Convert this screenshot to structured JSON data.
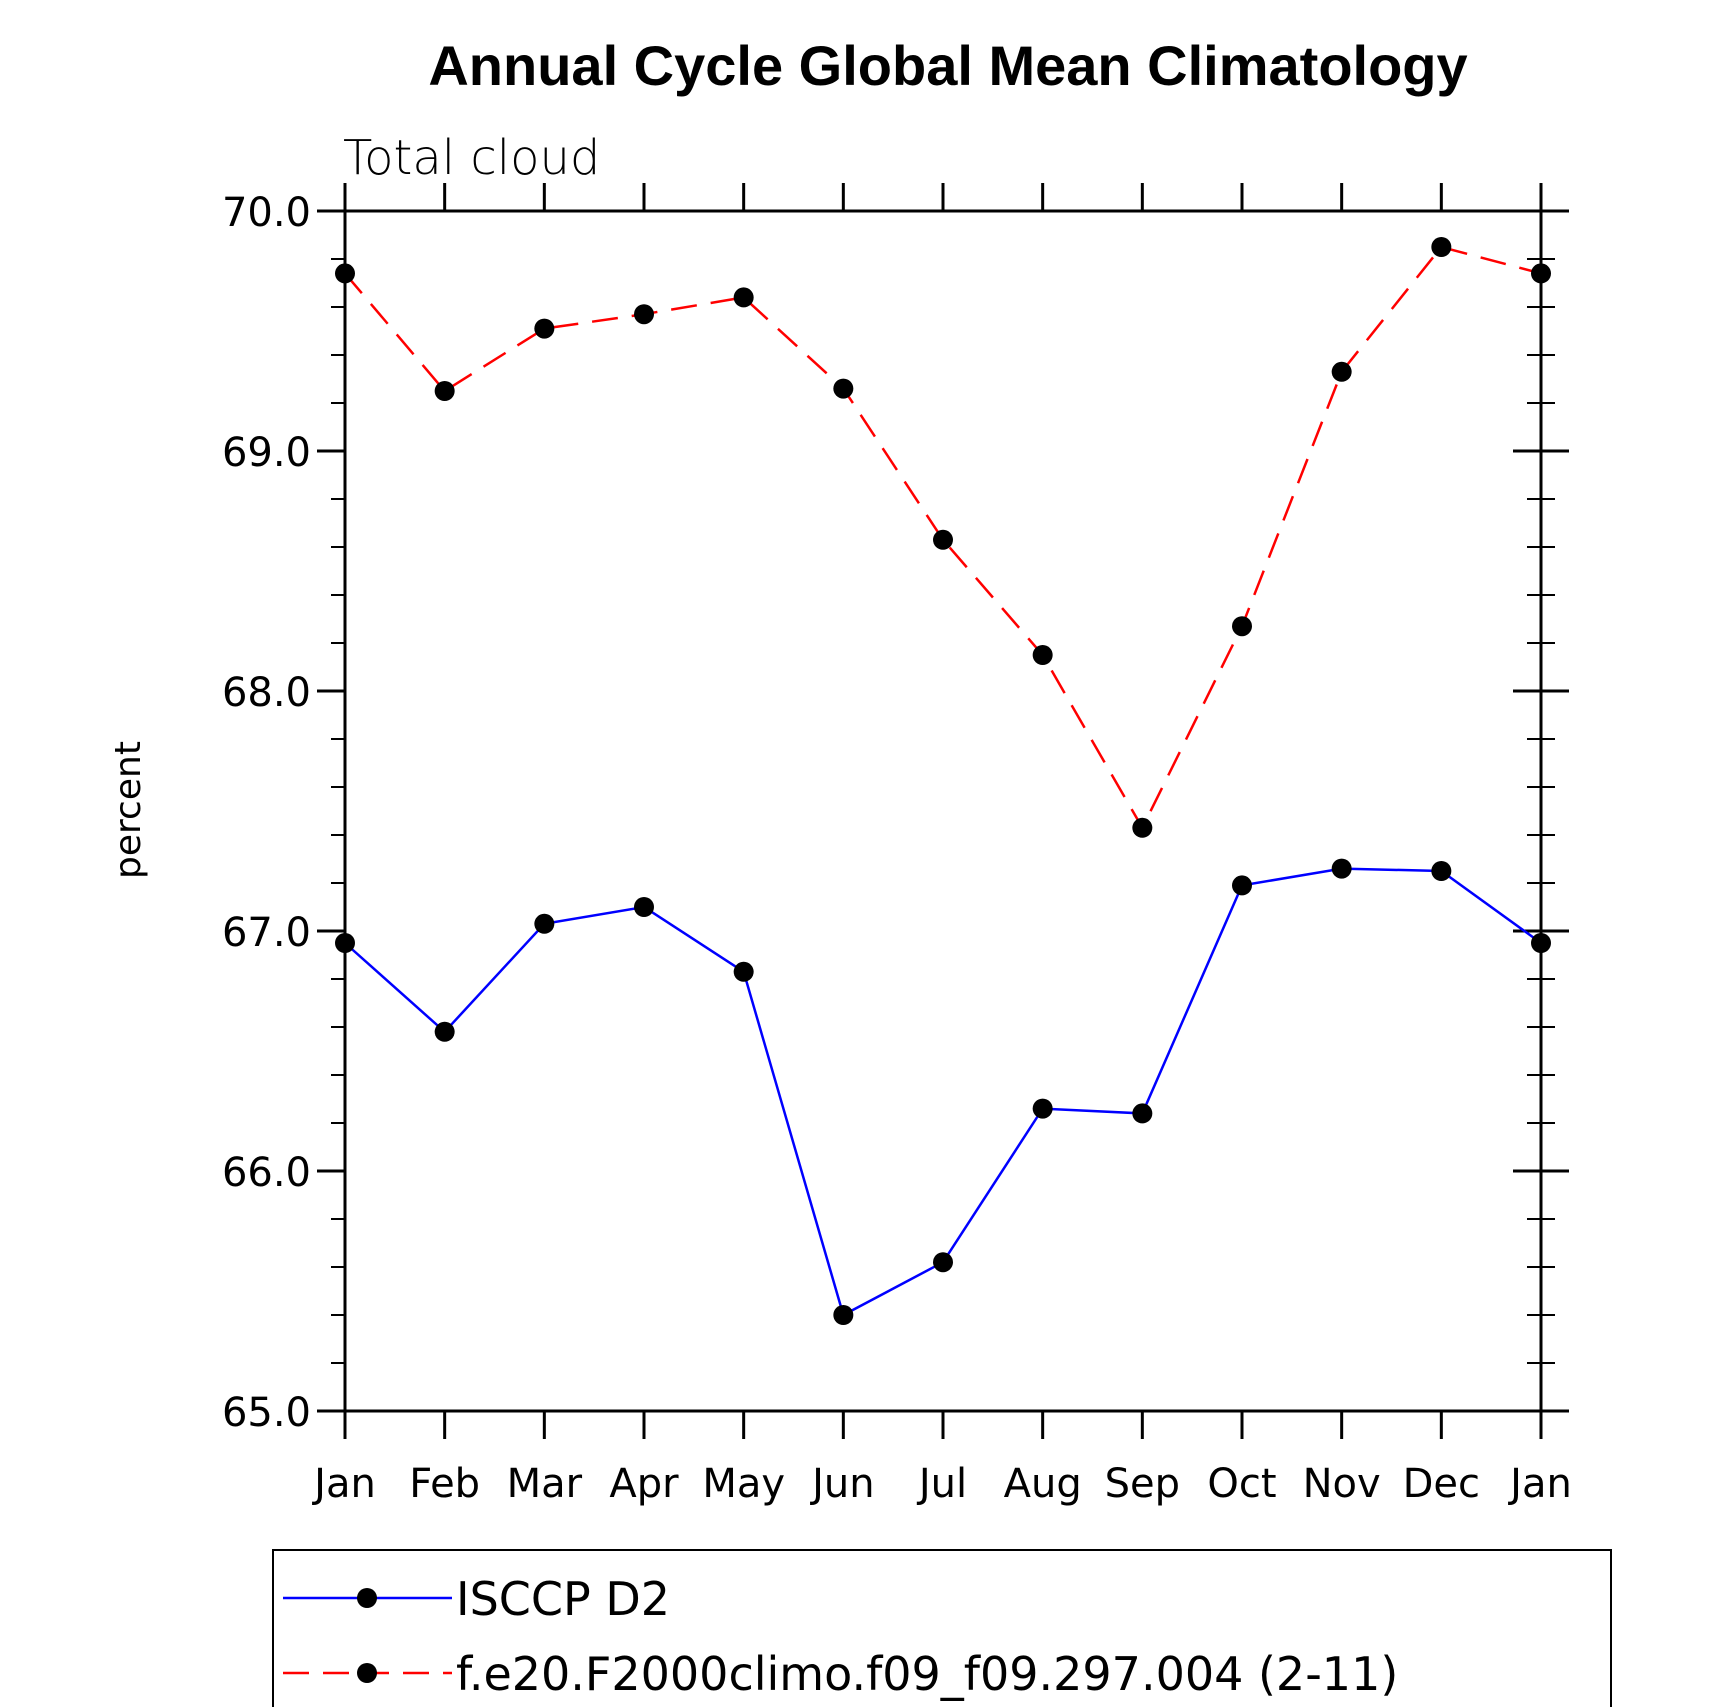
{
  "chart_data": {
    "type": "line",
    "title": "Annual Cycle Global Mean Climatology",
    "subtitle": "Total cloud",
    "xlabel": "",
    "ylabel": "percent",
    "categories": [
      "Jan",
      "Feb",
      "Mar",
      "Apr",
      "May",
      "Jun",
      "Jul",
      "Aug",
      "Sep",
      "Oct",
      "Nov",
      "Dec",
      "Jan"
    ],
    "ylim": [
      65.0,
      70.0
    ],
    "yticks": [
      65.0,
      66.0,
      67.0,
      68.0,
      69.0,
      70.0
    ],
    "ytick_labels": [
      "65.0",
      "66.0",
      "67.0",
      "68.0",
      "69.0",
      "70.0"
    ],
    "grid": false,
    "legend_position": "bottom",
    "series": [
      {
        "name": "ISCCP D2",
        "color": "#0000ff",
        "line_style": "solid",
        "marker": "filled-circle",
        "values": [
          66.95,
          66.58,
          67.03,
          67.1,
          66.83,
          65.4,
          65.62,
          66.26,
          66.24,
          67.19,
          67.26,
          67.25,
          66.95
        ]
      },
      {
        "name": "f.e20.F2000climo.f09_f09.297.004 (2-11)",
        "color": "#ff0000",
        "line_style": "dashed",
        "marker": "filled-circle",
        "values": [
          69.74,
          69.25,
          69.51,
          69.57,
          69.64,
          69.26,
          68.63,
          68.15,
          67.43,
          68.27,
          69.33,
          69.85,
          69.74
        ]
      }
    ]
  }
}
